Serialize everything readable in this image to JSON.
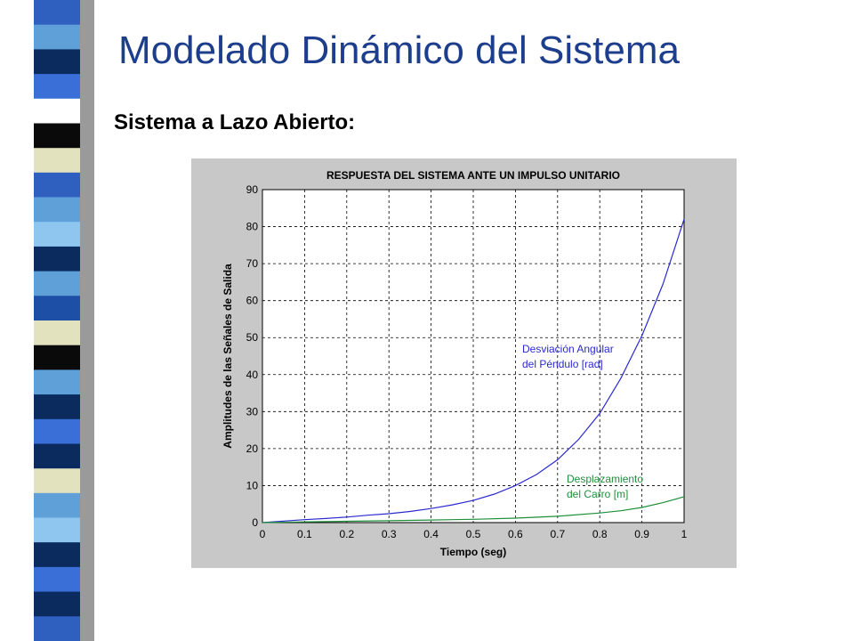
{
  "slide": {
    "title": "Modelado Dinámico del Sistema",
    "subtitle": "Sistema a Lazo Abierto:"
  },
  "decor": {
    "stripe_colors": [
      "#2f5fbf",
      "#5fa0d8",
      "#0b2a5e",
      "#3a6fd8",
      "#ffffff",
      "#0a0a0a",
      "#e2e2bf",
      "#2f5fbf",
      "#5fa0d8",
      "#8ec6f0",
      "#0b2a5e",
      "#5fa0d8",
      "#1d4fa6",
      "#e2e2bf",
      "#0a0a0a",
      "#5fa0d8",
      "#0b2a5e",
      "#3a6fd8",
      "#0b2a5e",
      "#e2e2bf",
      "#5fa0d8",
      "#8ec6f0",
      "#0b2a5e",
      "#3a6fd8",
      "#0b2a5e",
      "#2f5fbf"
    ]
  },
  "chart_data": {
    "type": "line",
    "title": "RESPUESTA DEL SISTEMA ANTE UN IMPULSO UNITARIO",
    "xlabel": "Tiempo (seg)",
    "ylabel": "Amplitudes de las Señales de Salida",
    "xlim": [
      0,
      1
    ],
    "ylim": [
      0,
      90
    ],
    "xticks": [
      "0",
      "0.1",
      "0.2",
      "0.3",
      "0.4",
      "0.5",
      "0.6",
      "0.7",
      "0.8",
      "0.9",
      "1"
    ],
    "yticks": [
      "0",
      "10",
      "20",
      "30",
      "40",
      "50",
      "60",
      "70",
      "80",
      "90"
    ],
    "grid": true,
    "series": [
      {
        "name_lines": [
          "Desviación Angular",
          "del Péndulo [rad]"
        ],
        "color": "#2a2ad0",
        "x": [
          0,
          0.05,
          0.1,
          0.15,
          0.2,
          0.25,
          0.3,
          0.35,
          0.4,
          0.45,
          0.5,
          0.55,
          0.6,
          0.65,
          0.7,
          0.75,
          0.8,
          0.85,
          0.9,
          0.95,
          1.0
        ],
        "y": [
          0,
          0.4,
          0.8,
          1.1,
          1.5,
          2.0,
          2.4,
          3.0,
          3.8,
          4.8,
          6.0,
          7.7,
          10.0,
          13.0,
          17.0,
          22.5,
          29.5,
          39.0,
          50.5,
          64.5,
          82.0
        ]
      },
      {
        "name_lines": [
          "Desplazamiento",
          "del Carro [m]"
        ],
        "color": "#1e8f3a",
        "x": [
          0,
          0.1,
          0.2,
          0.3,
          0.4,
          0.5,
          0.6,
          0.7,
          0.8,
          0.85,
          0.9,
          0.95,
          1.0
        ],
        "y": [
          0,
          0.2,
          0.35,
          0.5,
          0.7,
          0.9,
          1.2,
          1.7,
          2.6,
          3.2,
          4.1,
          5.4,
          7.0
        ]
      }
    ]
  }
}
